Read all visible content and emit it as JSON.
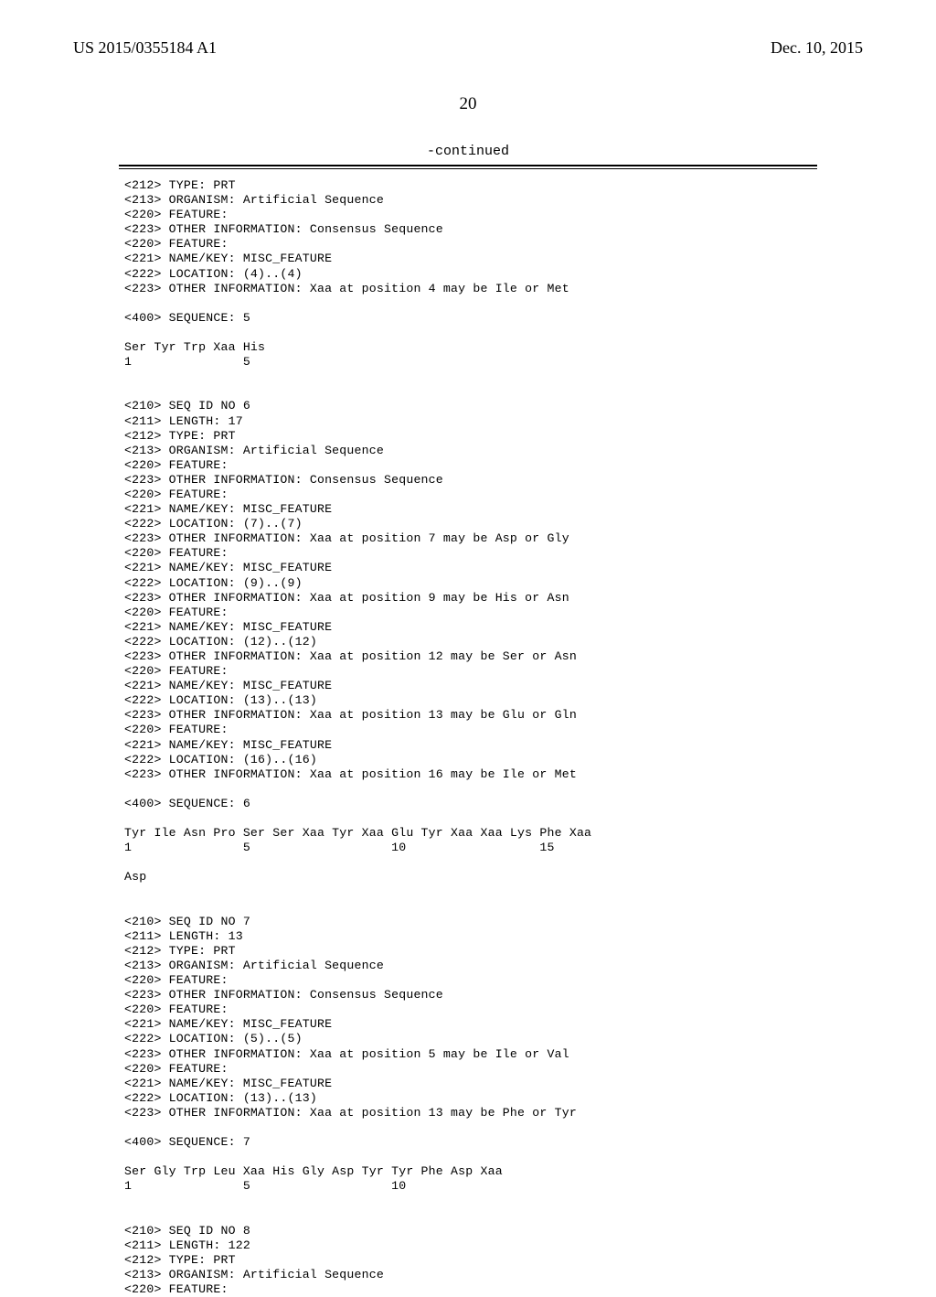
{
  "header": {
    "pub_number": "US 2015/0355184 A1",
    "pub_date": "Dec. 10, 2015"
  },
  "page_number": "20",
  "continued_label": "-continued",
  "sequence_text": "<212> TYPE: PRT\n<213> ORGANISM: Artificial Sequence\n<220> FEATURE:\n<223> OTHER INFORMATION: Consensus Sequence\n<220> FEATURE:\n<221> NAME/KEY: MISC_FEATURE\n<222> LOCATION: (4)..(4)\n<223> OTHER INFORMATION: Xaa at position 4 may be Ile or Met\n\n<400> SEQUENCE: 5\n\nSer Tyr Trp Xaa His\n1               5\n\n\n<210> SEQ ID NO 6\n<211> LENGTH: 17\n<212> TYPE: PRT\n<213> ORGANISM: Artificial Sequence\n<220> FEATURE:\n<223> OTHER INFORMATION: Consensus Sequence\n<220> FEATURE:\n<221> NAME/KEY: MISC_FEATURE\n<222> LOCATION: (7)..(7)\n<223> OTHER INFORMATION: Xaa at position 7 may be Asp or Gly\n<220> FEATURE:\n<221> NAME/KEY: MISC_FEATURE\n<222> LOCATION: (9)..(9)\n<223> OTHER INFORMATION: Xaa at position 9 may be His or Asn\n<220> FEATURE:\n<221> NAME/KEY: MISC_FEATURE\n<222> LOCATION: (12)..(12)\n<223> OTHER INFORMATION: Xaa at position 12 may be Ser or Asn\n<220> FEATURE:\n<221> NAME/KEY: MISC_FEATURE\n<222> LOCATION: (13)..(13)\n<223> OTHER INFORMATION: Xaa at position 13 may be Glu or Gln\n<220> FEATURE:\n<221> NAME/KEY: MISC_FEATURE\n<222> LOCATION: (16)..(16)\n<223> OTHER INFORMATION: Xaa at position 16 may be Ile or Met\n\n<400> SEQUENCE: 6\n\nTyr Ile Asn Pro Ser Ser Xaa Tyr Xaa Glu Tyr Xaa Xaa Lys Phe Xaa\n1               5                   10                  15\n\nAsp\n\n\n<210> SEQ ID NO 7\n<211> LENGTH: 13\n<212> TYPE: PRT\n<213> ORGANISM: Artificial Sequence\n<220> FEATURE:\n<223> OTHER INFORMATION: Consensus Sequence\n<220> FEATURE:\n<221> NAME/KEY: MISC_FEATURE\n<222> LOCATION: (5)..(5)\n<223> OTHER INFORMATION: Xaa at position 5 may be Ile or Val\n<220> FEATURE:\n<221> NAME/KEY: MISC_FEATURE\n<222> LOCATION: (13)..(13)\n<223> OTHER INFORMATION: Xaa at position 13 may be Phe or Tyr\n\n<400> SEQUENCE: 7\n\nSer Gly Trp Leu Xaa His Gly Asp Tyr Tyr Phe Asp Xaa\n1               5                   10\n\n\n<210> SEQ ID NO 8\n<211> LENGTH: 122\n<212> TYPE: PRT\n<213> ORGANISM: Artificial Sequence\n<220> FEATURE:"
}
